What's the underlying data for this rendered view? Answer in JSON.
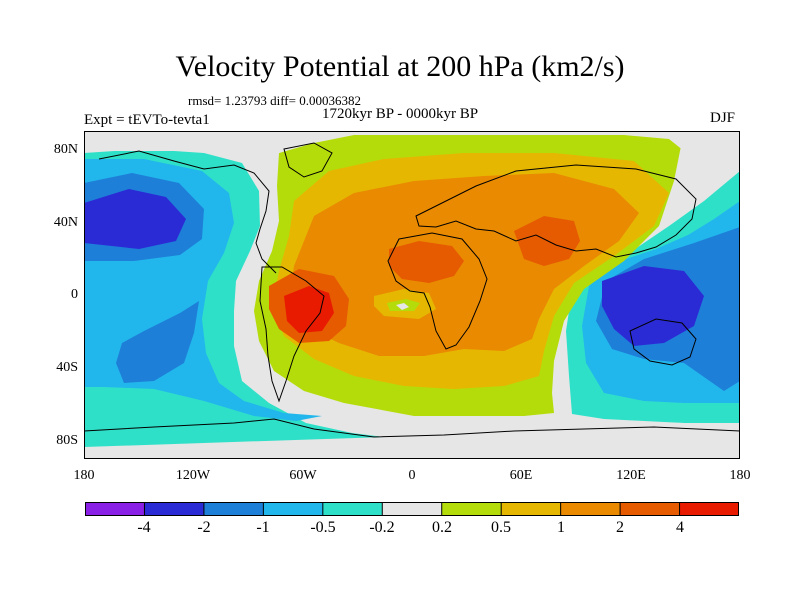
{
  "title": "Velocity Potential at 200 hPa (km2/s)",
  "stats": "rmsd= 1.23793 diff= 0.00036382",
  "period": "1720kyr BP - 0000kyr BP",
  "experiment": "Expt = tEVTo-tevta1",
  "season": "DJF",
  "axes": {
    "y_ticks": [
      "80N",
      "40N",
      "0",
      "40S",
      "80S"
    ],
    "x_ticks": [
      "180",
      "120W",
      "60W",
      "0",
      "60E",
      "120E",
      "180"
    ]
  },
  "colorbar": {
    "labels": [
      "-4",
      "-2",
      "-1",
      "-0.5",
      "-0.2",
      "0.2",
      "0.5",
      "1",
      "2",
      "4"
    ],
    "colors": [
      "#8a1fe6",
      "#2b2bd6",
      "#1e7fd8",
      "#22b7ec",
      "#2fe0c8",
      "#e6e6e6",
      "#b4dc0a",
      "#e6b700",
      "#e98a00",
      "#e65a00",
      "#e81a00"
    ]
  },
  "palette": {
    "white": "#e6e6e6",
    "cyan": "#2fe0c8",
    "lightblue": "#22b7ec",
    "blue": "#1e7fd8",
    "darkblue": "#2b2bd6",
    "yellowgreen": "#b4dc0a",
    "yellow": "#e6b700",
    "orange": "#e98a00",
    "darkorange": "#e65a00",
    "red": "#e81a00"
  }
}
